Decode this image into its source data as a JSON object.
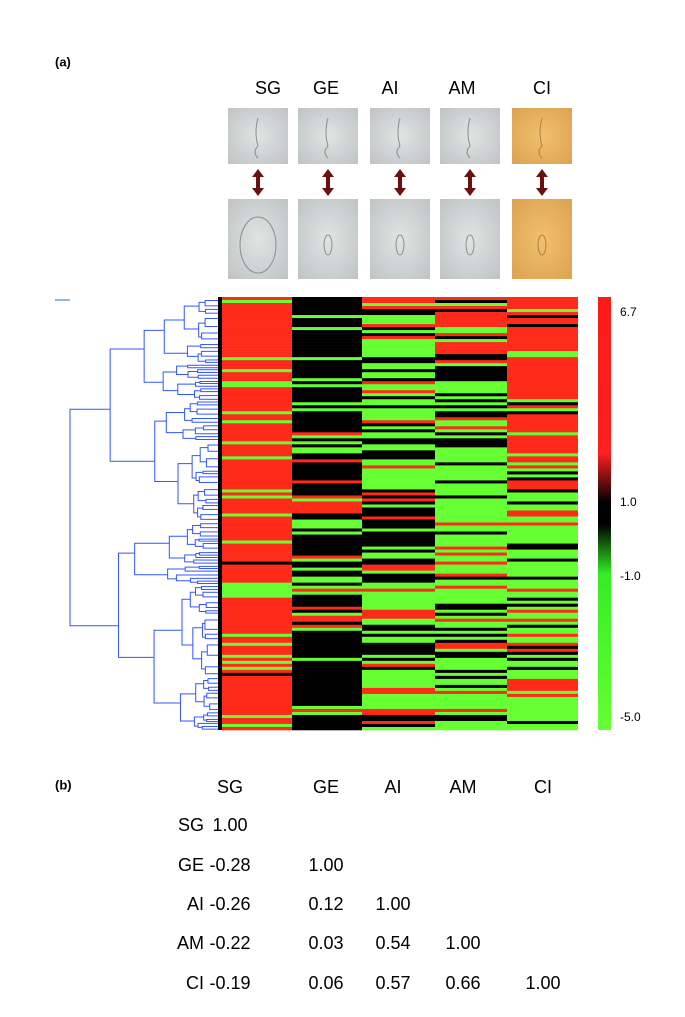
{
  "panel_a": {
    "label": "(a)",
    "columns": [
      "SG",
      "GE",
      "AI",
      "AM",
      "CI"
    ],
    "colorbar": [
      "6.7",
      "1.0",
      "-1.0",
      "-5.0"
    ]
  },
  "panel_b": {
    "label": "(b)",
    "table": {
      "header": [
        "SG",
        "GE",
        "AI",
        "AM",
        "CI"
      ],
      "rows": [
        {
          "label": "SG",
          "values": [
            "1.00"
          ]
        },
        {
          "label": "GE",
          "values": [
            "-0.28",
            "1.00"
          ]
        },
        {
          "label": "AI",
          "values": [
            "-0.26",
            "0.12",
            "1.00"
          ]
        },
        {
          "label": "AM",
          "values": [
            "-0.22",
            "0.03",
            "0.54",
            "1.00"
          ]
        },
        {
          "label": "CI",
          "values": [
            "-0.19",
            "0.06",
            "0.57",
            "0.66",
            "1.00"
          ]
        }
      ]
    }
  }
}
